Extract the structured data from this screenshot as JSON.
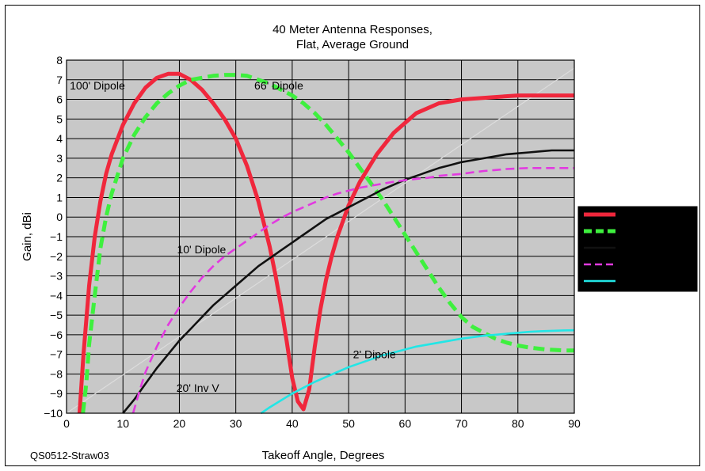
{
  "chart_data": {
    "type": "line",
    "title": [
      "40 Meter Antenna Responses,",
      "Flat, Average Ground"
    ],
    "xlabel": "Takeoff Angle, Degrees",
    "ylabel": "Gain, dBi",
    "xlim": [
      0,
      90
    ],
    "ylim": [
      -10,
      8
    ],
    "xticks": [
      0,
      10,
      20,
      30,
      40,
      50,
      60,
      70,
      80,
      90
    ],
    "yticks": [
      8,
      7,
      6,
      5,
      4,
      3,
      2,
      1,
      0,
      -1,
      -2,
      -3,
      -4,
      -5,
      -6,
      -7,
      -8,
      -9,
      -10
    ],
    "grid": true,
    "legend_position": "right",
    "background_color": "#c8c8c8",
    "series": [
      {
        "name": "100' Dipole",
        "color": "#f0273c",
        "dash": "solid",
        "style": "heavy",
        "x": [
          2.3,
          3,
          4,
          5,
          6,
          7,
          8,
          10,
          12,
          14,
          16,
          18,
          20,
          22,
          24,
          26,
          28,
          30,
          32,
          34,
          36,
          37,
          38,
          39,
          40,
          41,
          42,
          43,
          44,
          45,
          46,
          47,
          48,
          50,
          52,
          55,
          58,
          62,
          66,
          70,
          75,
          80,
          85,
          90
        ],
        "y": [
          -10,
          -7,
          -3.5,
          -1,
          0.8,
          2.2,
          3.2,
          4.7,
          5.8,
          6.6,
          7.1,
          7.3,
          7.3,
          7.0,
          6.5,
          5.8,
          5.0,
          4.0,
          2.6,
          0.8,
          -1.5,
          -2.9,
          -4.5,
          -6.3,
          -8.2,
          -9.4,
          -9.8,
          -8.8,
          -6.6,
          -4.7,
          -3.2,
          -2.0,
          -1.0,
          0.6,
          1.8,
          3.2,
          4.3,
          5.3,
          5.8,
          6.0,
          6.1,
          6.2,
          6.2,
          6.2
        ],
        "label_on_chart": "100' Dipole"
      },
      {
        "name": "66' Dipole",
        "color": "#3ef03e",
        "dash": "dashed",
        "style": "heavy",
        "x": [
          2.9,
          3.5,
          4,
          5,
          6,
          7,
          8,
          10,
          12,
          14,
          16,
          18,
          20,
          22,
          24,
          26,
          28,
          30,
          32,
          34,
          36,
          38,
          40,
          42,
          44,
          46,
          48,
          50,
          52,
          54,
          56,
          58,
          60,
          62,
          64,
          66,
          68,
          70,
          72,
          74,
          76,
          78,
          80,
          82,
          85,
          88,
          90
        ],
        "y": [
          -10,
          -8.5,
          -6.5,
          -4,
          -1.6,
          0,
          1.2,
          3,
          4.2,
          5.1,
          5.8,
          6.3,
          6.7,
          7.0,
          7.1,
          7.2,
          7.25,
          7.25,
          7.2,
          7.0,
          6.8,
          6.5,
          6.2,
          5.8,
          5.3,
          4.7,
          4.0,
          3.3,
          2.5,
          1.7,
          0.9,
          0.0,
          -0.9,
          -1.8,
          -2.7,
          -3.6,
          -4.4,
          -5.1,
          -5.6,
          -5.9,
          -6.2,
          -6.4,
          -6.55,
          -6.65,
          -6.75,
          -6.8,
          -6.8
        ],
        "label_on_chart": "66' Dipole"
      },
      {
        "name": "20' Inv V",
        "color": "#111111",
        "dash": "solid",
        "style": "medium",
        "x": [
          10,
          12,
          14,
          16,
          18,
          20,
          22,
          24,
          26,
          28,
          30,
          32,
          34,
          36,
          38,
          40,
          42,
          44,
          46,
          48,
          50,
          52,
          54,
          56,
          58,
          60,
          62,
          64,
          66,
          68,
          70,
          72,
          74,
          76,
          78,
          80,
          82,
          84,
          86,
          88,
          90
        ],
        "y": [
          -10,
          -9.3,
          -8.5,
          -7.7,
          -7.0,
          -6.3,
          -5.7,
          -5.1,
          -4.5,
          -4.0,
          -3.5,
          -3.0,
          -2.5,
          -2.1,
          -1.7,
          -1.3,
          -0.9,
          -0.5,
          -0.1,
          0.2,
          0.5,
          0.8,
          1.1,
          1.4,
          1.65,
          1.9,
          2.1,
          2.3,
          2.5,
          2.65,
          2.8,
          2.9,
          3.0,
          3.1,
          3.2,
          3.25,
          3.3,
          3.35,
          3.4,
          3.4,
          3.4
        ],
        "label_on_chart": "20' Inv V"
      },
      {
        "name": "10' Dipole",
        "color": "#e23ae0",
        "dash": "dashed",
        "style": "medium",
        "x": [
          11.8,
          13,
          14,
          16,
          18,
          20,
          22,
          24,
          26,
          28,
          30,
          32,
          34,
          36,
          38,
          40,
          42,
          44,
          46,
          48,
          50,
          52,
          54,
          56,
          58,
          60,
          62,
          64,
          66,
          68,
          70,
          72,
          74,
          76,
          78,
          80,
          82,
          84,
          86,
          88,
          90
        ],
        "y": [
          -10,
          -8.8,
          -7.9,
          -6.6,
          -5.5,
          -4.6,
          -3.8,
          -3.1,
          -2.5,
          -2.0,
          -1.6,
          -1.2,
          -0.8,
          -0.4,
          -0.05,
          0.25,
          0.5,
          0.75,
          1.0,
          1.2,
          1.35,
          1.5,
          1.6,
          1.7,
          1.8,
          1.88,
          1.95,
          2.0,
          2.1,
          2.15,
          2.2,
          2.28,
          2.35,
          2.4,
          2.45,
          2.48,
          2.5,
          2.5,
          2.5,
          2.5,
          2.5
        ],
        "label_on_chart": "10' Dipole"
      },
      {
        "name": "2' Dipole",
        "color": "#22e6e6",
        "dash": "solid",
        "style": "medium",
        "x": [
          34.5,
          36,
          38,
          40,
          42,
          44,
          46,
          48,
          50,
          52,
          54,
          56,
          58,
          60,
          62,
          64,
          66,
          68,
          70,
          72,
          74,
          76,
          78,
          80,
          82,
          84,
          86,
          88,
          90
        ],
        "y": [
          -10,
          -9.7,
          -9.35,
          -9.0,
          -8.7,
          -8.4,
          -8.15,
          -7.9,
          -7.65,
          -7.45,
          -7.25,
          -7.05,
          -6.9,
          -6.75,
          -6.6,
          -6.5,
          -6.4,
          -6.3,
          -6.2,
          -6.12,
          -6.05,
          -6.0,
          -5.95,
          -5.9,
          -5.85,
          -5.82,
          -5.8,
          -5.78,
          -5.77
        ],
        "label_on_chart": "2' Dipole"
      }
    ],
    "annotations": [
      {
        "text": "100' Dipole",
        "x": 0.3,
        "y": 6.7
      },
      {
        "text": "66' Dipole",
        "x": 33,
        "y": 6.7
      },
      {
        "text": "10' Dipole",
        "x": 19.3,
        "y": -1.65
      },
      {
        "text": "2' Dipole",
        "x": 50.5,
        "y": -7.0
      },
      {
        "text": "20' Inv V",
        "x": 19.2,
        "y": -8.7
      }
    ]
  },
  "footer": {
    "figure_id": "QS0512-Straw03"
  }
}
